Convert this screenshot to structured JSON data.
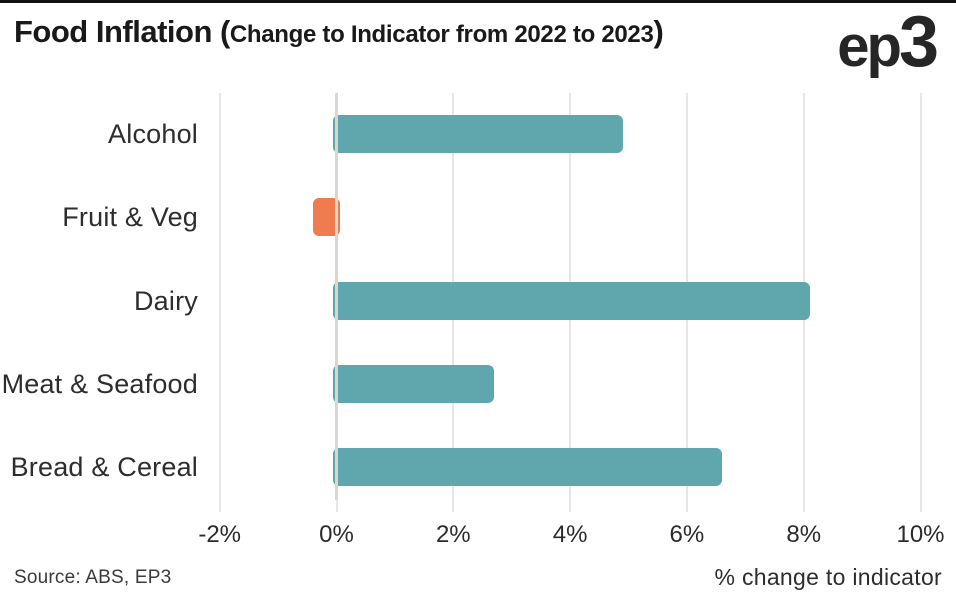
{
  "header": {
    "title_main": "Food Inflation (",
    "title_sub": "Change to Indicator from 2022 to 2023",
    "title_close": ")",
    "logo_ep": "ep",
    "logo_three": "3"
  },
  "footer": {
    "source": "Source: ABS, EP3",
    "xaxis_label": "% change to indicator"
  },
  "colors": {
    "teal": "#5fa6ad",
    "orange": "#ee7c4e",
    "gridline": "#e8e6e0",
    "zero_line": "#d8d7d2",
    "label_text": "#2d2d2d",
    "title_text": "#191919"
  },
  "chart_data": {
    "type": "bar",
    "orientation": "horizontal",
    "title": "Food Inflation (Change to Indicator from 2022 to 2023)",
    "categories": [
      "Alcohol",
      "Fruit & Veg",
      "Dairy",
      "Meat & Seafood",
      "Bread & Cereal"
    ],
    "values": [
      4.9,
      -0.4,
      8.1,
      2.7,
      6.6
    ],
    "bar_colors": [
      "#5fa6ad",
      "#ee7c4e",
      "#5fa6ad",
      "#5fa6ad",
      "#5fa6ad"
    ],
    "xlabel": "% change to indicator",
    "xlim": [
      -2,
      10
    ],
    "xticks": [
      -2,
      0,
      2,
      4,
      6,
      8,
      10
    ],
    "xtick_labels": [
      "-2%",
      "0%",
      "2%",
      "4%",
      "6%",
      "8%",
      "10%"
    ],
    "grid": true,
    "legend": false
  }
}
